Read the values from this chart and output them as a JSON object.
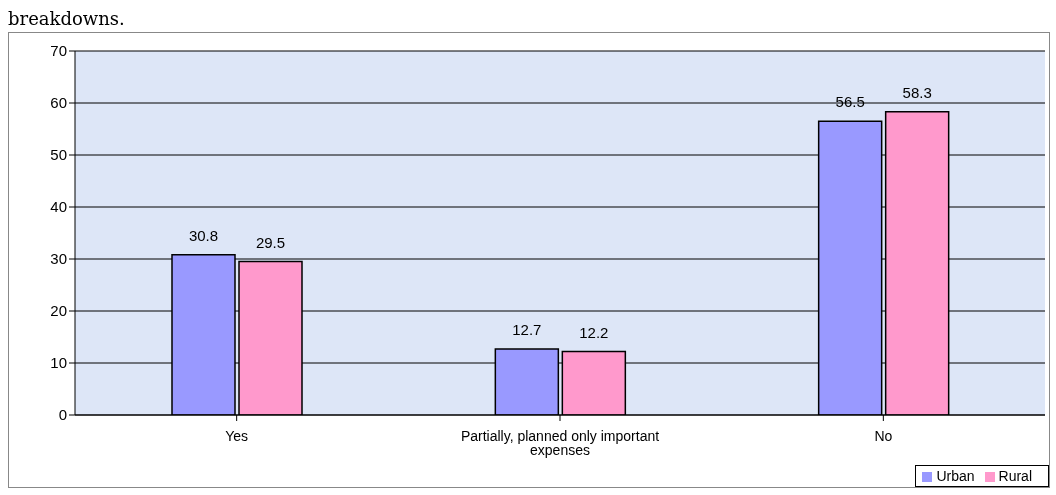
{
  "chart_data": {
    "type": "bar",
    "annotations": [
      "breakdowns."
    ],
    "categories": [
      "Yes",
      "Partially, planned only important expenses",
      "No"
    ],
    "series": [
      {
        "name": "Urban",
        "color": "#9999ff",
        "values": [
          30.8,
          12.7,
          56.5
        ]
      },
      {
        "name": "Rural",
        "color": "#ff99cc",
        "values": [
          29.5,
          12.2,
          58.3
        ]
      }
    ],
    "ylim": [
      0,
      70
    ],
    "yticks": [
      0,
      10,
      20,
      30,
      40,
      50,
      60,
      70
    ],
    "grid": "y",
    "legend": "bottom right",
    "data_labels": true
  }
}
